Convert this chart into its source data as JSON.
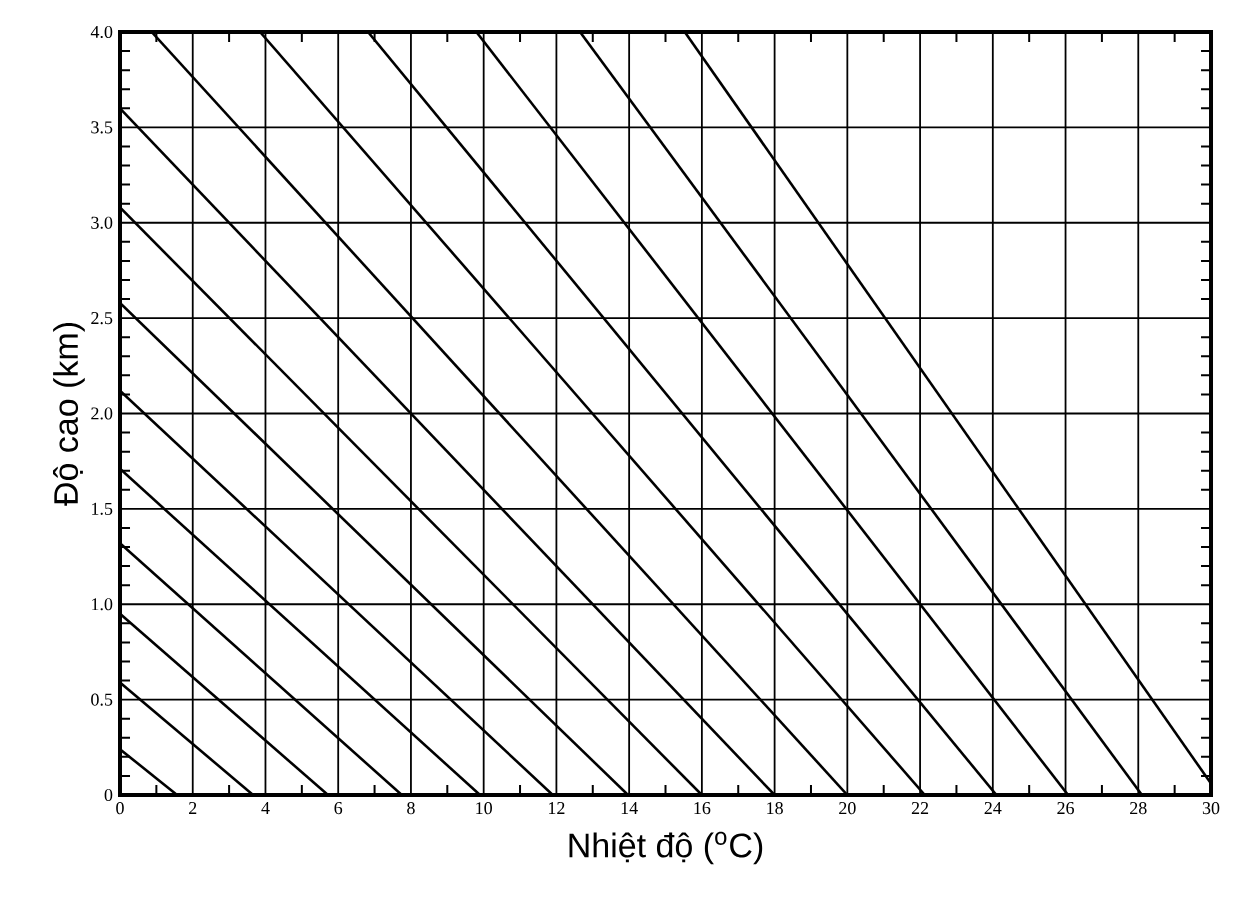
{
  "chart_data": {
    "type": "line",
    "xlabel": "Nhiệt độ ($^{o}$C)",
    "ylabel": "Độ cao (km)",
    "xlim": [
      0,
      30
    ],
    "ylim": [
      0,
      4
    ],
    "xticks": [
      0,
      2,
      4,
      6,
      8,
      10,
      12,
      14,
      16,
      18,
      20,
      22,
      24,
      26,
      28,
      30
    ],
    "yticks": [
      0,
      0.5,
      {
        "value": 1,
        "label": "1.0"
      },
      1.5,
      {
        "value": 2,
        "label": "2.0"
      },
      2.5,
      {
        "value": 3,
        "label": "3.0"
      },
      3.5,
      {
        "value": 4,
        "label": "4.0"
      }
    ],
    "grid": true,
    "legend": false,
    "marker": "none",
    "line_style": "solid",
    "series": [
      {
        "color": "#000000",
        "x": [
          0,
          1.57
        ],
        "values": [
          0.24,
          0
        ]
      },
      {
        "color": "#000000",
        "x": [
          0,
          3.66
        ],
        "values": [
          0.59,
          0
        ]
      },
      {
        "color": "#000000",
        "x": [
          0,
          5.72
        ],
        "values": [
          0.95,
          0
        ]
      },
      {
        "color": "#000000",
        "x": [
          0,
          7.75
        ],
        "values": [
          1.32,
          0
        ]
      },
      {
        "color": "#000000",
        "x": [
          0,
          9.9
        ],
        "values": [
          1.71,
          0
        ]
      },
      {
        "color": "#000000",
        "x": [
          0,
          11.9
        ],
        "values": [
          2.12,
          0
        ]
      },
      {
        "color": "#000000",
        "x": [
          0,
          13.97
        ],
        "values": [
          2.58,
          0
        ]
      },
      {
        "color": "#000000",
        "x": [
          0,
          16.0
        ],
        "values": [
          3.08,
          0
        ]
      },
      {
        "color": "#000000",
        "x": [
          0,
          18.0
        ],
        "values": [
          3.6,
          0
        ]
      },
      {
        "color": "#000000",
        "x": [
          0.87,
          20.0
        ],
        "values": [
          4,
          0
        ]
      },
      {
        "color": "#000000",
        "x": [
          3.85,
          22.13
        ],
        "values": [
          4,
          0
        ]
      },
      {
        "color": "#000000",
        "x": [
          6.82,
          24.1
        ],
        "values": [
          4,
          0
        ]
      },
      {
        "color": "#000000",
        "x": [
          9.8,
          26.07
        ],
        "values": [
          4,
          0
        ]
      },
      {
        "color": "#000000",
        "x": [
          12.65,
          28.1
        ],
        "values": [
          4,
          0
        ]
      },
      {
        "color": "#000000",
        "x": [
          15.53,
          30
        ],
        "values": [
          4,
          0.06
        ]
      }
    ]
  }
}
